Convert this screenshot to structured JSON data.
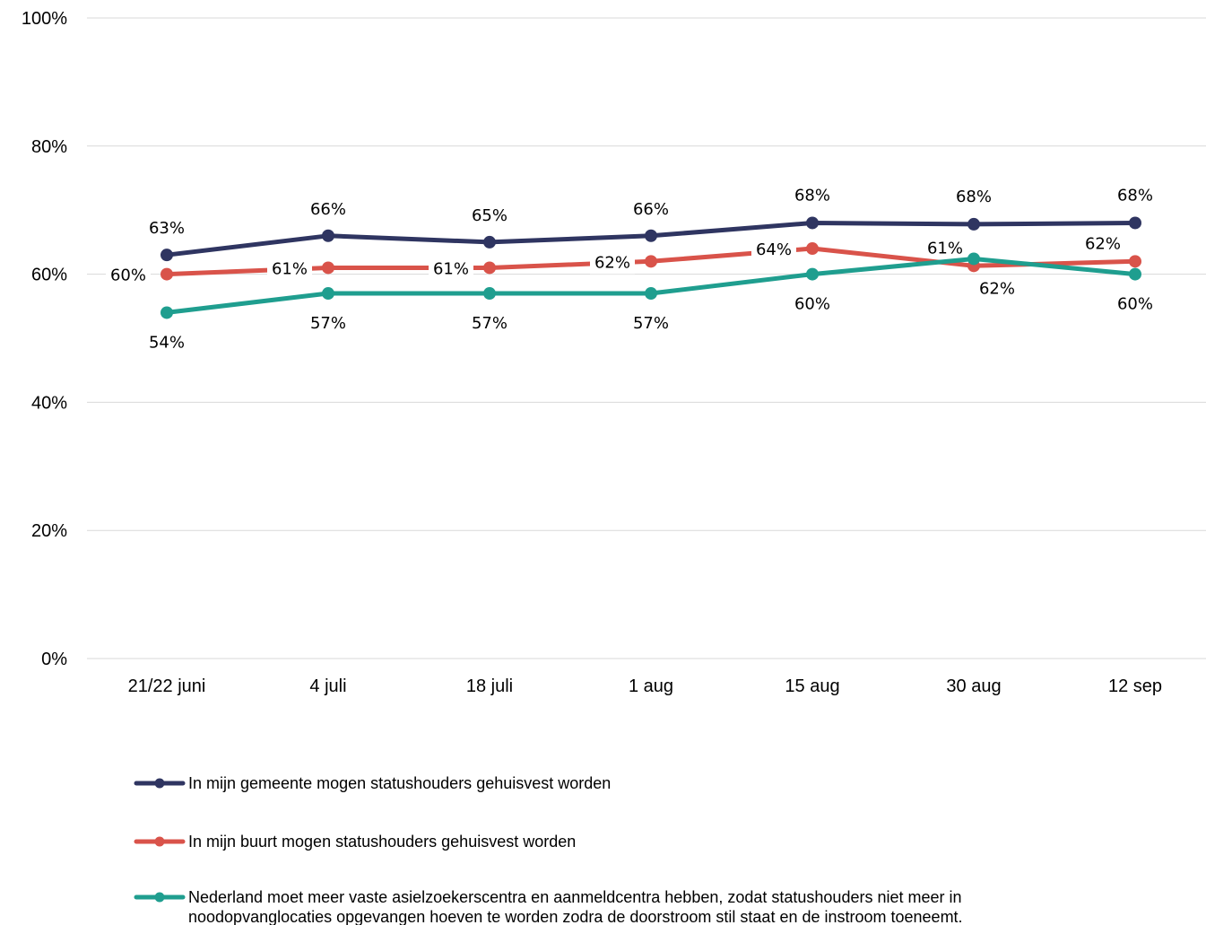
{
  "chart_data": {
    "type": "line",
    "title": "",
    "xlabel": "",
    "ylabel": "",
    "categories": [
      "21/22 juni",
      "4 juli",
      "18 juli",
      "1 aug",
      "15 aug",
      "30 aug",
      "12 sep"
    ],
    "ylim": [
      0,
      100
    ],
    "yticks": [
      0,
      20,
      40,
      60,
      80,
      100
    ],
    "ytick_labels": [
      "0%",
      "20%",
      "40%",
      "60%",
      "80%",
      "100%"
    ],
    "grid": "horizontal",
    "legend_position": "bottom",
    "series": [
      {
        "name": "In mijn gemeente mogen statushouders gehuisvest worden",
        "color": "#2f3561",
        "values": [
          63,
          66,
          65,
          66,
          68,
          67.8,
          68
        ],
        "labels": [
          "63%",
          "66%",
          "65%",
          "66%",
          "68%",
          "68%",
          "68%"
        ]
      },
      {
        "name": "In mijn buurt mogen statushouders gehuisvest worden",
        "color": "#d9534a",
        "values": [
          60,
          61,
          61,
          62,
          64,
          61.3,
          62
        ],
        "labels": [
          "60%",
          "61%",
          "61%",
          "62%",
          "64%",
          "61%",
          "62%"
        ]
      },
      {
        "name": "Nederland moet meer vaste asielzoekerscentra en aanmeldcentra hebben, zodat statushouders niet meer in noodopvanglocaties opgevangen hoeven te worden zodra de doorstroom stil staat en de instroom toeneemt.",
        "legend_lines": [
          "Nederland moet meer vaste asielzoekerscentra en aanmeldcentra hebben, zodat statushouders niet meer in",
          "noodopvanglocaties opgevangen hoeven te worden zodra de doorstroom stil staat en de instroom toeneemt."
        ],
        "color": "#1f9e8f",
        "values": [
          54,
          57,
          57,
          57,
          60,
          62.4,
          60
        ],
        "labels": [
          "54%",
          "57%",
          "57%",
          "57%",
          "60%",
          "62%",
          "60%"
        ]
      }
    ]
  }
}
